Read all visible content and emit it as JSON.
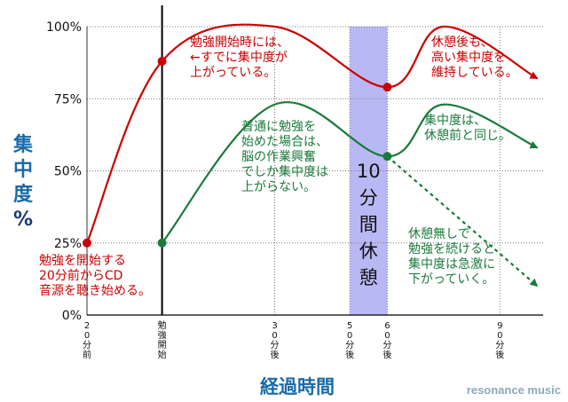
{
  "chart_data": {
    "type": "line",
    "title": "",
    "xlabel": "経過時間",
    "ylabel": "集中度%",
    "ylim": [
      0,
      100
    ],
    "y_ticks": [
      "0%",
      "25%",
      "50%",
      "75%",
      "100%"
    ],
    "y_tick_values": [
      0,
      25,
      50,
      75,
      100
    ],
    "x_ticks": [
      {
        "x": -20,
        "label": "20分前"
      },
      {
        "x": 0,
        "label": "勉強開始"
      },
      {
        "x": 30,
        "label": "30分後"
      },
      {
        "x": 50,
        "label": "50分後"
      },
      {
        "x": 60,
        "label": "60分後"
      },
      {
        "x": 90,
        "label": "90分後"
      }
    ],
    "xlim": [
      -20,
      100
    ],
    "grid": true,
    "break_band": {
      "x_start": 50,
      "x_end": 60,
      "label": "10分間休憩"
    },
    "series": [
      {
        "color": "#cc0000",
        "points": [
          {
            "x": -20,
            "y": 25
          },
          {
            "x": 0,
            "y": 88
          },
          {
            "x": 30,
            "y": 100
          },
          {
            "x": 60,
            "y": 79
          },
          {
            "x": 75,
            "y": 100
          },
          {
            "x": 100,
            "y": 82
          }
        ],
        "markers": [
          {
            "x": -20,
            "y": 25
          },
          {
            "x": 0,
            "y": 88
          },
          {
            "x": 60,
            "y": 79
          }
        ]
      },
      {
        "color": "#1a7a3a",
        "points": [
          {
            "x": 0,
            "y": 25
          },
          {
            "x": 30,
            "y": 73
          },
          {
            "x": 60,
            "y": 55
          },
          {
            "x": 75,
            "y": 73
          },
          {
            "x": 100,
            "y": 58
          }
        ],
        "markers": [
          {
            "x": 0,
            "y": 25
          },
          {
            "x": 60,
            "y": 55
          }
        ]
      },
      {
        "color": "#1a7a3a",
        "dashed": true,
        "points": [
          {
            "x": 60,
            "y": 55
          },
          {
            "x": 100,
            "y": 10
          }
        ]
      }
    ],
    "annotations": [
      {
        "lines": [
          "勉強開始時には、",
          "←すでに集中度が",
          "上がっている。"
        ],
        "color": "#cc0000"
      },
      {
        "lines": [
          "休憩後も、",
          "高い集中度を",
          "維持している。"
        ],
        "color": "#cc0000"
      },
      {
        "lines": [
          "普通に勉強を",
          "始めた場合は、",
          "脳の作業興奮",
          "でしか集中度は",
          "上がらない。"
        ],
        "color": "#1a7a3a"
      },
      {
        "lines": [
          "集中度は、",
          "休憩前と同じ。"
        ],
        "color": "#1a7a3a"
      },
      {
        "lines": [
          "休憩無しで",
          "勉強を続けると",
          "集中度は急激に",
          "下がっていく。"
        ],
        "color": "#1a7a3a"
      },
      {
        "lines": [
          "勉強を開始する",
          "20分前からCD",
          "音源を聴き始める。"
        ],
        "color": "#cc0000"
      }
    ]
  },
  "colors": {
    "axis_label": "#1a6aa8",
    "ylabel_percent": "#1a3a7a",
    "band": "#b8b8f4",
    "brand": "#8aaabb"
  },
  "branding": "resonance music"
}
